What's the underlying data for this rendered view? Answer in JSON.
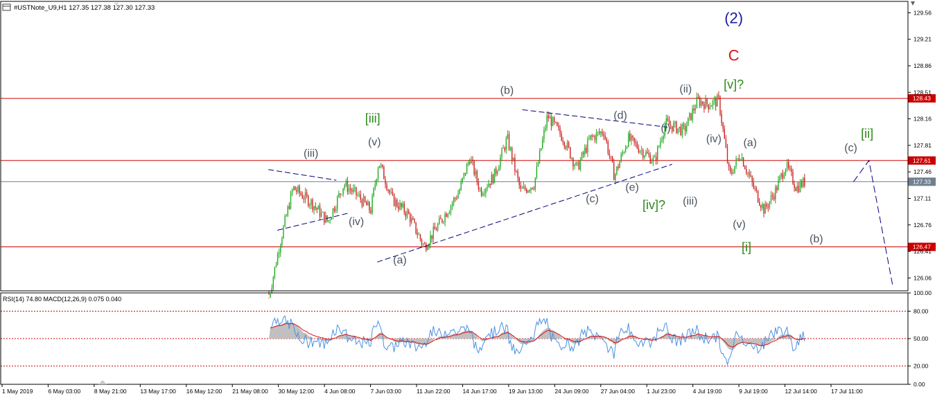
{
  "header": {
    "symbol_label": "#USTNote_U9,H1  127.35 127.38 127.30 127.33",
    "icon": "chart-window-icon"
  },
  "indicator": {
    "label": "RSI(14) 74.80 MACD(12,26,9) 0.075 0.040",
    "levels": [
      80,
      50,
      20
    ],
    "axis_labels": [
      "100.00",
      "80.00",
      "50.00",
      "20.00",
      "0.00"
    ],
    "axis_values": [
      100,
      80,
      50,
      20,
      0
    ]
  },
  "colors": {
    "resistance_line": "#cc0000",
    "price_line": "#708090",
    "bull_candle": "#22aa22",
    "bear_candle": "#cc2222",
    "trendline": "#00007f",
    "wave_primary": "#1a1aa6",
    "wave_c": "#dd1111",
    "wave_minor": "#2a8a18",
    "wave_minute": "#4a5560",
    "rsi_line": "#4a90e2",
    "macd_signal": "#dd1111",
    "macd_hist": "#c0c0c0"
  },
  "chart_data": {
    "type": "candlestick",
    "timeframe": "H1",
    "ylim": [
      125.89,
      129.71
    ],
    "y_ticks": [
      129.56,
      129.21,
      128.86,
      128.51,
      128.16,
      127.81,
      127.46,
      127.11,
      126.76,
      126.41,
      126.06
    ],
    "y_tick_labels": [
      "129.56",
      "129.21",
      "128.86",
      "128.51",
      "128.16",
      "127.81",
      "127.46",
      "127.11",
      "126.76",
      "126.41",
      "126.06"
    ],
    "x_tick_labels": [
      "1 May 2019",
      "6 May 03:00",
      "8 May 21:00",
      "13 May 17:00",
      "16 May 12:00",
      "21 May 08:00",
      "30 May 12:00",
      "4 Jun 08:00",
      "7 Jun 03:00",
      "11 Jun 22:00",
      "14 Jun 17:00",
      "19 Jun 13:00",
      "24 Jun 09:00",
      "27 Jun 04:00",
      "1 Jul 23:00",
      "4 Jul 19:00",
      "9 Jul 19:00",
      "12 Jul 14:00",
      "17 Jul 11:00"
    ],
    "horizontal_lines": [
      {
        "price": 128.43,
        "label": "128.43"
      },
      {
        "price": 127.61,
        "label": "127.61"
      },
      {
        "price": 126.47,
        "label": "126.47"
      }
    ],
    "current_price": {
      "price": 127.33,
      "label": "127.33"
    },
    "price_path": [
      [
        0.0,
        125.8
      ],
      [
        0.02,
        126.5
      ],
      [
        0.045,
        127.25
      ],
      [
        0.08,
        127.05
      ],
      [
        0.11,
        126.8
      ],
      [
        0.14,
        127.3
      ],
      [
        0.165,
        127.15
      ],
      [
        0.19,
        126.95
      ],
      [
        0.205,
        127.6
      ],
      [
        0.23,
        127.1
      ],
      [
        0.26,
        126.9
      ],
      [
        0.29,
        126.47
      ],
      [
        0.32,
        126.8
      ],
      [
        0.355,
        127.2
      ],
      [
        0.375,
        127.65
      ],
      [
        0.395,
        127.2
      ],
      [
        0.42,
        127.4
      ],
      [
        0.445,
        127.9
      ],
      [
        0.47,
        127.2
      ],
      [
        0.495,
        127.3
      ],
      [
        0.52,
        128.2
      ],
      [
        0.55,
        127.9
      ],
      [
        0.575,
        127.5
      ],
      [
        0.6,
        127.9
      ],
      [
        0.625,
        128.0
      ],
      [
        0.645,
        127.4
      ],
      [
        0.67,
        127.9
      ],
      [
        0.695,
        127.75
      ],
      [
        0.72,
        127.6
      ],
      [
        0.74,
        128.1
      ],
      [
        0.775,
        128.0
      ],
      [
        0.8,
        128.4
      ],
      [
        0.82,
        128.35
      ],
      [
        0.84,
        128.4
      ],
      [
        0.86,
        127.4
      ],
      [
        0.88,
        127.7
      ],
      [
        0.905,
        127.25
      ],
      [
        0.925,
        126.95
      ],
      [
        0.945,
        127.2
      ],
      [
        0.965,
        127.55
      ],
      [
        0.985,
        127.25
      ],
      [
        1.0,
        127.33
      ]
    ],
    "projection": [
      {
        "time": "17 Jul 11:00",
        "price": 127.61
      },
      {
        "time": "",
        "price": 125.97
      }
    ],
    "trendlines": [
      {
        "from": [
          0.295,
          127.49
        ],
        "to": [
          0.37,
          127.35
        ]
      },
      {
        "from": [
          0.305,
          126.69
        ],
        "to": [
          0.385,
          126.92
        ]
      },
      {
        "from": [
          0.415,
          126.27
        ],
        "to": [
          0.74,
          127.56
        ]
      },
      {
        "from": [
          0.575,
          128.28
        ],
        "to": [
          0.735,
          128.05
        ]
      }
    ],
    "wave_labels": [
      {
        "text": "(2)",
        "price": 129.42,
        "pos": 0.808,
        "style": "primary"
      },
      {
        "text": "C",
        "price": 128.93,
        "pos": 0.808,
        "style": "c"
      },
      {
        "text": "[v]?",
        "price": 128.56,
        "pos": 0.808,
        "style": "minor"
      },
      {
        "text": "[iii]",
        "price": 128.11,
        "pos": 0.41,
        "style": "minor"
      },
      {
        "text": "[iv]?",
        "price": 126.97,
        "pos": 0.72,
        "style": "minor"
      },
      {
        "text": "[i]",
        "price": 126.41,
        "pos": 0.822,
        "style": "minor"
      },
      {
        "text": "[ii]",
        "price": 127.91,
        "pos": 0.955,
        "style": "minor"
      },
      {
        "text": "(iii)",
        "price": 127.66,
        "pos": 0.342,
        "style": "minute"
      },
      {
        "text": "(v)",
        "price": 127.81,
        "pos": 0.412,
        "style": "minute"
      },
      {
        "text": "(iv)",
        "price": 126.76,
        "pos": 0.392,
        "style": "minute"
      },
      {
        "text": "(a)",
        "price": 126.25,
        "pos": 0.44,
        "style": "minute"
      },
      {
        "text": "(b)",
        "price": 128.49,
        "pos": 0.558,
        "style": "minute"
      },
      {
        "text": "(c)",
        "price": 127.06,
        "pos": 0.652,
        "style": "minute"
      },
      {
        "text": "(d)",
        "price": 128.16,
        "pos": 0.683,
        "style": "minute"
      },
      {
        "text": "(e)",
        "price": 127.21,
        "pos": 0.696,
        "style": "minute"
      },
      {
        "text": "(i)",
        "price": 127.99,
        "pos": 0.733,
        "style": "minute"
      },
      {
        "text": "(ii)",
        "price": 128.51,
        "pos": 0.755,
        "style": "minute"
      },
      {
        "text": "(iii)",
        "price": 127.03,
        "pos": 0.76,
        "style": "minute"
      },
      {
        "text": "(iv)",
        "price": 127.85,
        "pos": 0.786,
        "style": "minute"
      },
      {
        "text": "(v)",
        "price": 126.72,
        "pos": 0.814,
        "style": "minute"
      },
      {
        "text": "(a)",
        "price": 127.8,
        "pos": 0.826,
        "style": "minute"
      },
      {
        "text": "(b)",
        "price": 126.53,
        "pos": 0.899,
        "style": "minute"
      },
      {
        "text": "(c)",
        "price": 127.73,
        "pos": 0.937,
        "style": "minute"
      }
    ]
  }
}
